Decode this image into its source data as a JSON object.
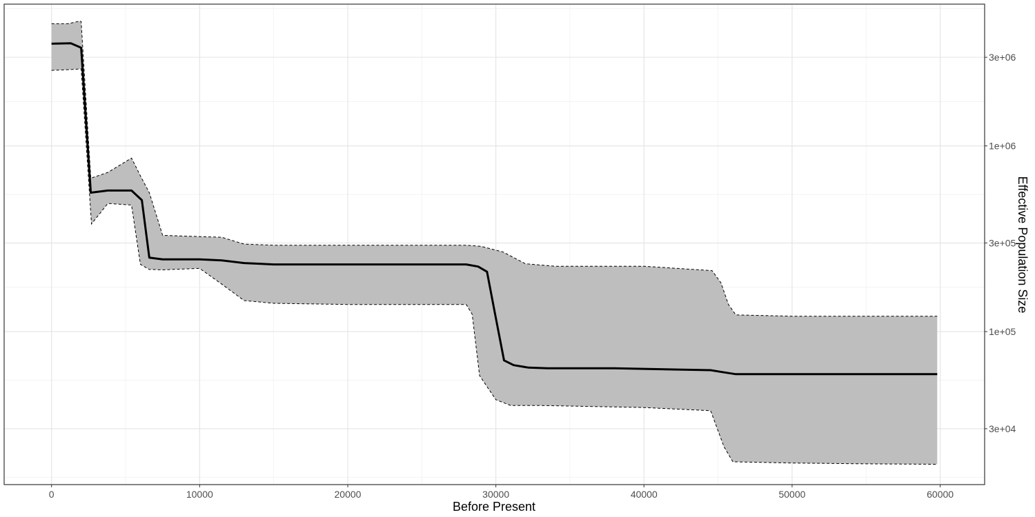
{
  "chart_data": {
    "type": "area",
    "title": "",
    "xlabel": "Before Present",
    "ylabel": "Effective Population Size",
    "y_axis_position": "right",
    "y_scale": "log",
    "xlim": [
      -3200,
      63000
    ],
    "ylim": [
      15000,
      5800000
    ],
    "x_ticks": [
      0,
      10000,
      20000,
      30000,
      40000,
      50000,
      60000
    ],
    "x_tick_labels": [
      "0",
      "10000",
      "20000",
      "30000",
      "40000",
      "50000",
      "60000"
    ],
    "y_ticks": [
      30000,
      100000,
      300000,
      1000000,
      3000000
    ],
    "y_tick_labels": [
      "3e+04",
      "1e+05",
      "3e+05",
      "1e+06",
      "3e+06"
    ],
    "grid": true,
    "legend": "none",
    "colors": {
      "band": "#bebebe",
      "median": "#000000",
      "bounds": "#000000"
    },
    "series": [
      {
        "role": "median",
        "style": "solid",
        "x": [
          0,
          1300,
          2000,
          2650,
          3800,
          5400,
          6100,
          6600,
          7500,
          10000,
          11500,
          13000,
          15000,
          20000,
          25000,
          28000,
          28800,
          29400,
          29900,
          30550,
          31200,
          32200,
          33500,
          38000,
          40000,
          42000,
          44500,
          45300,
          46200,
          50000,
          55000,
          59800
        ],
        "y": [
          3550000,
          3570000,
          3380000,
          560000,
          575000,
          575000,
          510000,
          250000,
          245000,
          245000,
          242000,
          234000,
          230000,
          230000,
          230000,
          230000,
          224000,
          210000,
          130000,
          70000,
          66000,
          64000,
          63500,
          63500,
          63000,
          62500,
          62000,
          60500,
          59000,
          59000,
          59000,
          59000
        ]
      },
      {
        "role": "upper",
        "style": "dashed",
        "x": [
          0,
          1100,
          1900,
          2000,
          2650,
          3800,
          5400,
          6000,
          6600,
          7500,
          10000,
          11500,
          13000,
          15000,
          20000,
          25000,
          28000,
          29000,
          30500,
          32000,
          34000,
          40000,
          44600,
          45200,
          45700,
          46200,
          50000,
          55000,
          59800
        ],
        "y": [
          4550000,
          4550000,
          4700000,
          4680000,
          670000,
          720000,
          860000,
          690000,
          560000,
          330000,
          325000,
          322000,
          296000,
          292000,
          292000,
          292000,
          292000,
          288000,
          268000,
          232000,
          225000,
          225000,
          213000,
          183000,
          140000,
          123000,
          121000,
          121000,
          121000
        ]
      },
      {
        "role": "lower",
        "style": "dashed",
        "x": [
          0,
          1400,
          2000,
          2700,
          3800,
          5400,
          6000,
          6600,
          7500,
          10000,
          11500,
          13000,
          15000,
          20000,
          25000,
          28000,
          28400,
          28900,
          30000,
          31000,
          33000,
          40000,
          44500,
          45400,
          46000,
          50000,
          55000,
          59800
        ],
        "y": [
          2550000,
          2580000,
          2600000,
          380000,
          490000,
          480000,
          230000,
          216000,
          215000,
          219000,
          180000,
          147000,
          142000,
          140000,
          140000,
          140000,
          124000,
          58000,
          43000,
          40000,
          40000,
          39000,
          37500,
          24000,
          19900,
          19600,
          19400,
          19300
        ]
      }
    ]
  }
}
